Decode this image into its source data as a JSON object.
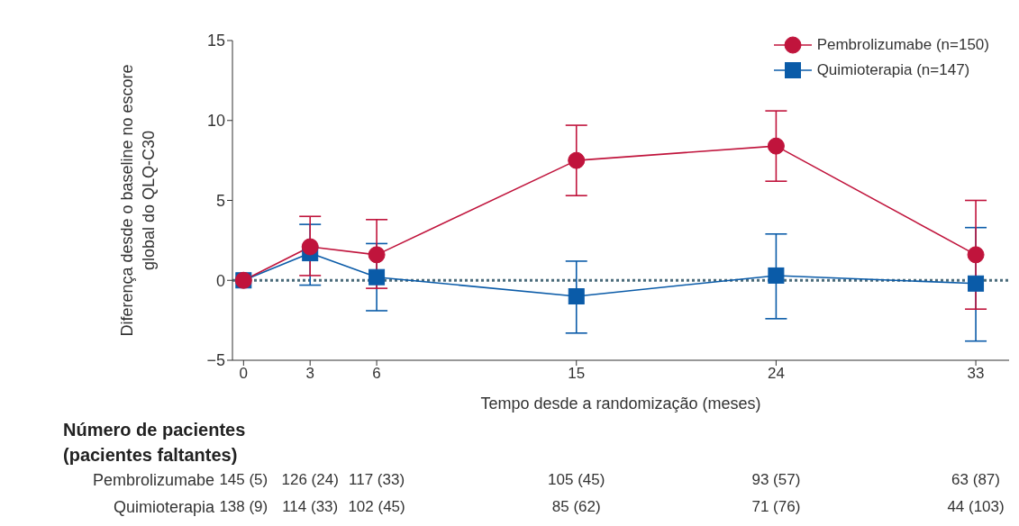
{
  "chart_data": {
    "type": "line",
    "xlabel": "Tempo desde a randomização (meses)",
    "ylabel": "Diferença desde o baseline no escore global do QLQ-C30",
    "x": [
      0,
      3,
      6,
      15,
      24,
      33
    ],
    "series": [
      {
        "name": "Pembrolizumabe (n=150)",
        "color": "#c0143c",
        "marker": "circle",
        "values": [
          0,
          2.1,
          1.6,
          7.5,
          8.4,
          1.6
        ],
        "errors": [
          null,
          [
            0.3,
            4.0
          ],
          [
            -0.5,
            3.8
          ],
          [
            5.3,
            9.7
          ],
          [
            6.2,
            10.6
          ],
          [
            -1.8,
            5.0
          ]
        ]
      },
      {
        "name": "Quimioterapia (n=147)",
        "color": "#0a5ba8",
        "marker": "square",
        "values": [
          0,
          1.7,
          0.2,
          -1.0,
          0.3,
          -0.2
        ],
        "errors": [
          null,
          [
            -0.3,
            3.5
          ],
          [
            -1.9,
            2.3
          ],
          [
            -3.3,
            1.2
          ],
          [
            -2.4,
            2.9
          ],
          [
            -3.8,
            3.3
          ]
        ]
      }
    ],
    "xlim": [
      -0.5,
      34.5
    ],
    "xticks": [
      0,
      3,
      6,
      15,
      24,
      33
    ],
    "ylim": [
      -5,
      15
    ],
    "yticks": [
      -5,
      0,
      5,
      10,
      15
    ],
    "ref_lines": [
      {
        "axis": "y",
        "value": 0,
        "color": "#4a6b7a",
        "line_style": "dotted"
      }
    ],
    "legend": "top right",
    "grid": false,
    "line_style": "solid",
    "annotations": [
      "Número de pacientes",
      "(pacientes faltantes)",
      "Pembrolizumabe",
      "145 (5)",
      "126 (24)",
      "117 (33)",
      "105 (45)",
      "93 (57)",
      "63 (87)",
      "Quimioterapia",
      "138 (9)",
      "114 (33)",
      "102 (45)",
      "85 (62)",
      "71 (76)",
      "44 (103)"
    ]
  }
}
